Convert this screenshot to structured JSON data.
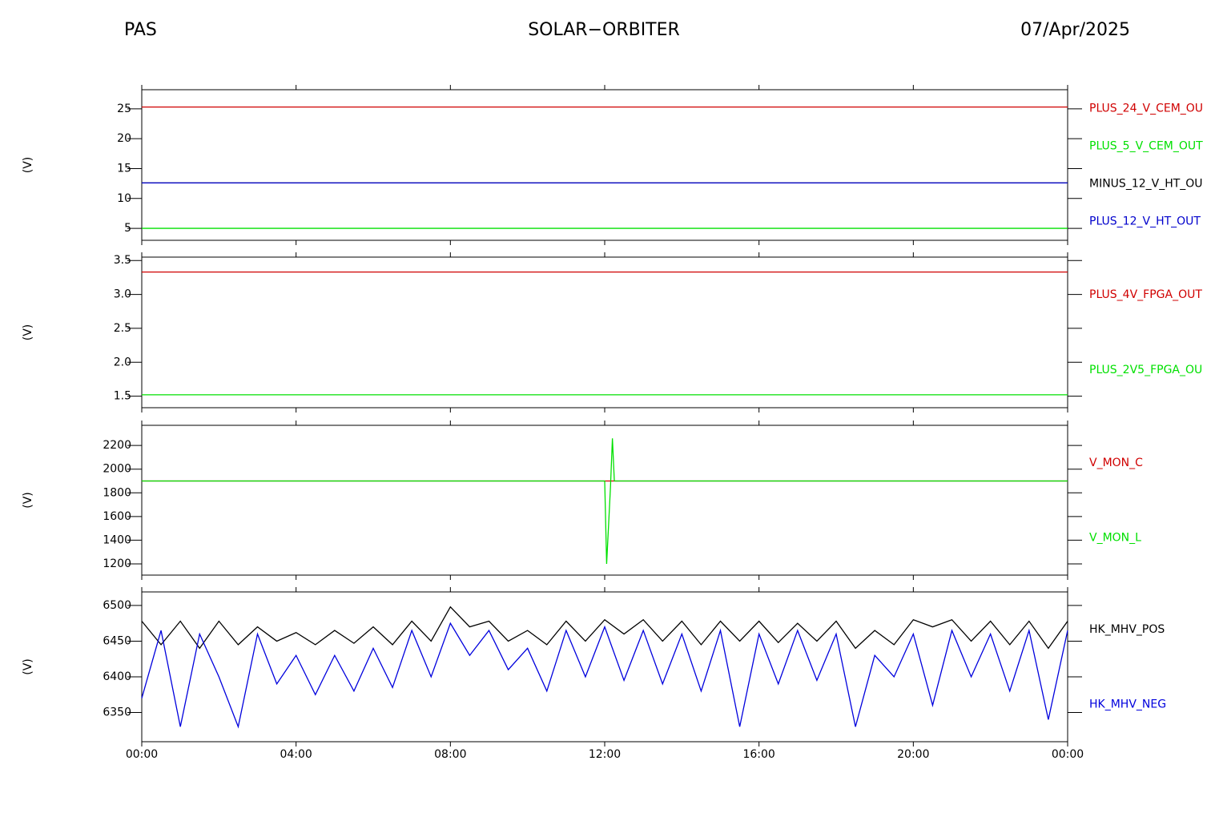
{
  "header": {
    "left": "PAS",
    "center": "SOLAR−ORBITER",
    "right": "07/Apr/2025"
  },
  "chart_data": [
    {
      "type": "line",
      "ylabel": "(V)",
      "x": [
        0,
        24
      ],
      "ylim": [
        3,
        28.2
      ],
      "yticks": [
        5,
        10,
        15,
        20,
        25
      ],
      "series": [
        {
          "name": "PLUS_24_V_CEM_OU",
          "color": "#d00000",
          "values": [
            25.3,
            25.3
          ]
        },
        {
          "name": "PLUS_5_V_CEM_OUT",
          "color": "#00e000",
          "values": [
            5.0,
            5.0
          ]
        },
        {
          "name": "MINUS_12_V_HT_OU",
          "color": "#000000",
          "values": [
            12.6,
            12.6
          ]
        },
        {
          "name": "PLUS_12_V_HT_OUT",
          "color": "#0000cc",
          "values": [
            12.6,
            12.6
          ]
        }
      ]
    },
    {
      "type": "line",
      "ylabel": "(V)",
      "x": [
        0,
        24
      ],
      "ylim": [
        1.33,
        3.55
      ],
      "yticks": [
        1.5,
        {
          "value": 2,
          "label": "2.0"
        },
        2.5,
        {
          "value": 3,
          "label": "3.0"
        },
        3.5
      ],
      "series": [
        {
          "name": "PLUS_4V_FPGA_OUT",
          "color": "#d00000",
          "values": [
            3.33,
            3.33
          ]
        },
        {
          "name": "PLUS_2V5_FPGA_OU",
          "color": "#00e000",
          "values": [
            1.52,
            1.52
          ]
        }
      ]
    },
    {
      "type": "line",
      "ylabel": "(V)",
      "x": [
        0,
        12.0,
        12.05,
        12.15,
        12.2,
        12.25,
        24
      ],
      "ylim": [
        1105,
        2370
      ],
      "yticks": [
        1200,
        1400,
        1600,
        1800,
        2000,
        2200
      ],
      "series": [
        {
          "name": "V_MON_C",
          "color": "#d00000",
          "values": [
            1900,
            1900,
            1900,
            1900,
            1900,
            1900,
            1900
          ]
        },
        {
          "name": "V_MON_L",
          "color": "#00e000",
          "values": [
            1900,
            1900,
            1200,
            1850,
            2260,
            1900,
            1900
          ]
        }
      ]
    },
    {
      "type": "line",
      "ylabel": "(V)",
      "x": [
        0,
        0.5,
        1,
        1.5,
        2,
        2.5,
        3,
        3.5,
        4,
        4.5,
        5,
        5.5,
        6,
        6.5,
        7,
        7.5,
        8,
        8.5,
        9,
        9.5,
        10,
        10.5,
        11,
        11.5,
        12,
        12.5,
        13,
        13.5,
        14,
        14.5,
        15,
        15.5,
        16,
        16.5,
        17,
        17.5,
        18,
        18.5,
        19,
        19.5,
        20,
        20.5,
        21,
        21.5,
        22,
        22.5,
        23,
        23.5,
        24
      ],
      "xlim": [
        0,
        24
      ],
      "xticks": [
        {
          "value": 0,
          "label": "00:00"
        },
        {
          "value": 4,
          "label": "04:00"
        },
        {
          "value": 8,
          "label": "08:00"
        },
        {
          "value": 12,
          "label": "12:00"
        },
        {
          "value": 16,
          "label": "16:00"
        },
        {
          "value": 20,
          "label": "20:00"
        },
        {
          "value": 24,
          "label": "00:00"
        }
      ],
      "ylim": [
        6309,
        6519
      ],
      "yticks": [
        6350,
        6400,
        6450,
        6500
      ],
      "series": [
        {
          "name": "HK_MHV_POS",
          "color": "#000000",
          "values": [
            6478,
            6445,
            6478,
            6440,
            6478,
            6445,
            6470,
            6450,
            6462,
            6445,
            6465,
            6447,
            6470,
            6445,
            6478,
            6450,
            6498,
            6470,
            6478,
            6450,
            6465,
            6445,
            6478,
            6450,
            6480,
            6460,
            6480,
            6450,
            6478,
            6445,
            6478,
            6450,
            6478,
            6448,
            6475,
            6450,
            6478,
            6440,
            6465,
            6445,
            6480,
            6470,
            6480,
            6450,
            6478,
            6445,
            6478,
            6440,
            6478
          ]
        },
        {
          "name": "HK_MHV_NEG",
          "color": "#0000dd",
          "values": [
            6370,
            6465,
            6330,
            6460,
            6400,
            6330,
            6460,
            6390,
            6430,
            6375,
            6430,
            6380,
            6440,
            6385,
            6465,
            6400,
            6475,
            6430,
            6465,
            6410,
            6440,
            6380,
            6465,
            6400,
            6470,
            6395,
            6465,
            6390,
            6460,
            6380,
            6465,
            6330,
            6460,
            6390,
            6465,
            6395,
            6460,
            6330,
            6430,
            6400,
            6460,
            6360,
            6465,
            6400,
            6460,
            6380,
            6465,
            6340,
            6465
          ]
        }
      ]
    }
  ]
}
